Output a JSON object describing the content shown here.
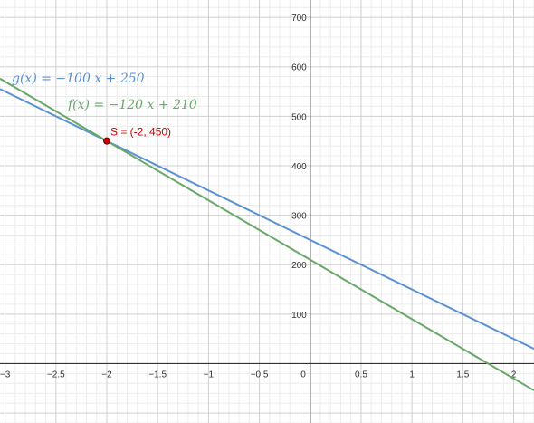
{
  "chart_data": {
    "type": "line",
    "title": "",
    "xlabel": "",
    "ylabel": "",
    "xlim": [
      -3.05,
      2.2
    ],
    "ylim": [
      -120,
      735
    ],
    "grid": true,
    "x_ticks": [
      -3,
      -2.5,
      -2,
      -1.5,
      -1,
      -0.5,
      0,
      0.5,
      1,
      1.5,
      2
    ],
    "x_tick_labels": [
      "−3",
      "−2.5",
      "−2",
      "−1.5",
      "−1",
      "−0.5",
      "0",
      "0.5",
      "1",
      "1.5",
      "2"
    ],
    "y_ticks": [
      100,
      200,
      300,
      400,
      500,
      600,
      700
    ],
    "y_tick_labels": [
      "100",
      "200",
      "300",
      "400",
      "500",
      "600",
      "700"
    ],
    "series": [
      {
        "name": "g(x) = −100 x + 250",
        "label": "g(x)  =  −100 x + 250",
        "slope": -100,
        "intercept": 250,
        "color": "#5b92d1",
        "x": [
          -3.05,
          2.2
        ],
        "y": [
          555,
          30
        ]
      },
      {
        "name": "f(x) = −120 x + 210",
        "label": "f(x)  =  −120 x + 210",
        "slope": -120,
        "intercept": 210,
        "color": "#69a868",
        "x": [
          -3.05,
          2.2
        ],
        "y": [
          576,
          -54
        ]
      }
    ],
    "points": [
      {
        "label": "S = (-2, 450)",
        "x": -2,
        "y": 450,
        "color": "#cc0000"
      }
    ]
  }
}
